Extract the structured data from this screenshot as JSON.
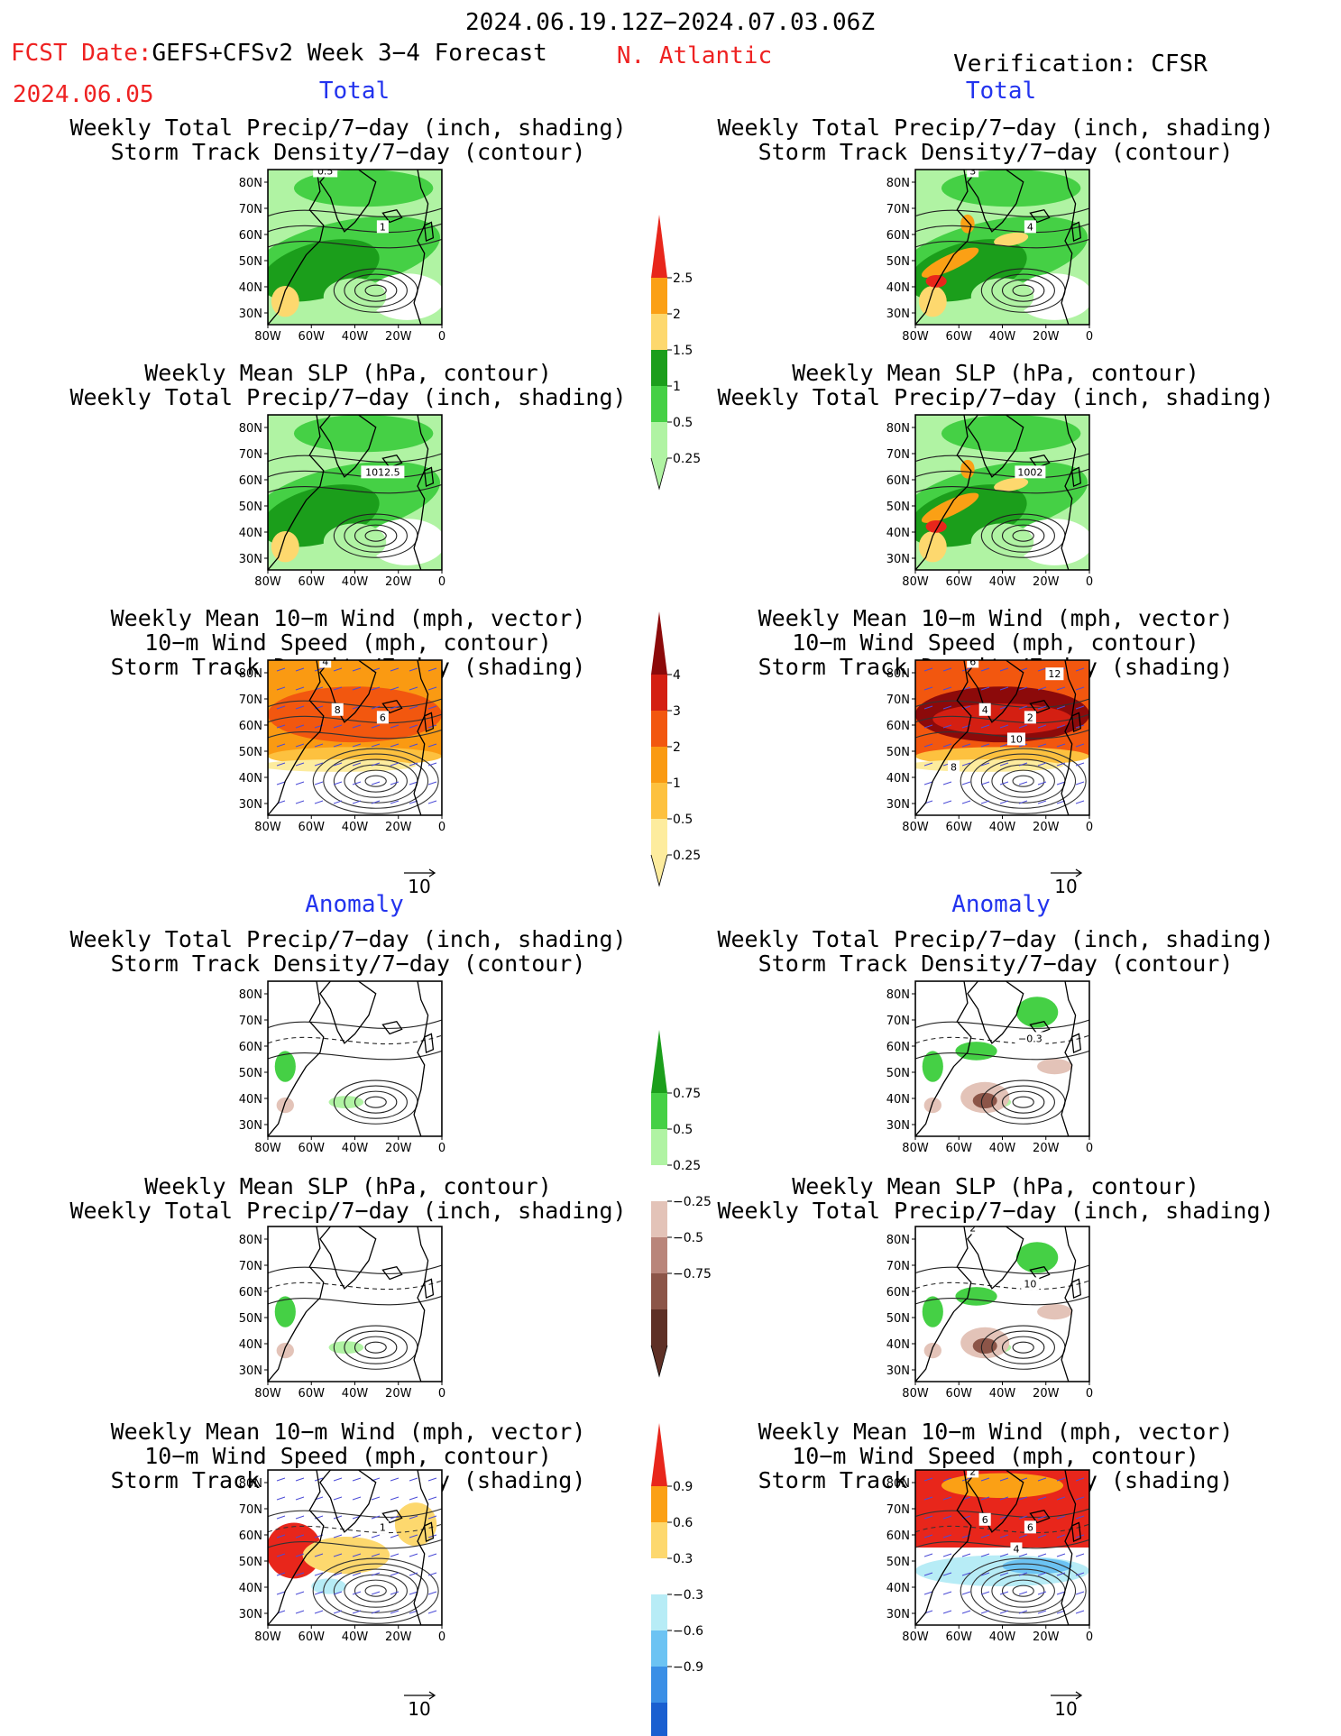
{
  "header": {
    "period": "2024.06.19.12Z−2024.07.03.06Z",
    "fcst_label": "FCST Date:",
    "fcst_date": "2024.06.05",
    "model": "GEFS+CFSv2 Week 3−4 Forecast",
    "region": "N. Atlantic",
    "verification": "Verification: CFSR",
    "total_label": "Total",
    "anomaly_label": "Anomaly"
  },
  "titles": {
    "precip_storm": [
      "Weekly Total Precip/7−day (inch, shading)",
      "Storm Track Density/7−day (contour)"
    ],
    "slp_precip": [
      "Weekly Mean SLP (hPa, contour)",
      "Weekly Total Precip/7−day (inch, shading)"
    ],
    "wind_storm": [
      "Weekly Mean 10−m Wind (mph, vector)",
      "10−m Wind Speed (mph, contour)",
      "Storm Track Density/7−day (shading)"
    ]
  },
  "axes": {
    "lat_labels": [
      "80N",
      "70N",
      "60N",
      "50N",
      "40N",
      "30N"
    ],
    "lon_labels": [
      "80W",
      "60W",
      "40W",
      "20W",
      "0"
    ]
  },
  "vector_ref": "10",
  "colorbars": [
    {
      "id": "precip-total",
      "labels": [
        "2.5",
        "2",
        "1.5",
        "1",
        "0.5",
        "0.25"
      ],
      "colors": [
        "#e8261b",
        "#fba015",
        "#fdd86e",
        "#1b9e1b",
        "#45d045",
        "#b0f3a3"
      ]
    },
    {
      "id": "storm-total",
      "labels": [
        "4",
        "3",
        "2",
        "1",
        "0.5",
        "0.25"
      ],
      "colors": [
        "#8c0a0a",
        "#d41f12",
        "#f2570f",
        "#fa9a12",
        "#fdc13f",
        "#fdec9e"
      ]
    },
    {
      "id": "precip-anom",
      "labels": [
        "0.75",
        "0.5",
        "0.25",
        "−0.25",
        "−0.5",
        "−0.75"
      ],
      "colors": [
        "#1b9e1b",
        "#45d045",
        "#b0f3a3",
        "#ffffff",
        "#e3c3b8",
        "#b9857a",
        "#8c5548",
        "#5e3026"
      ]
    },
    {
      "id": "storm-anom",
      "labels": [
        "0.9",
        "0.6",
        "0.3",
        "−0.3",
        "−0.6",
        "−0.9"
      ],
      "colors": [
        "#e8261b",
        "#fba015",
        "#fdd86e",
        "#ffffff",
        "#b7ecf6",
        "#6cc3f3",
        "#3a8fe6",
        "#1a5fd0"
      ]
    }
  ],
  "panel_labels": {
    "p1": [
      "1",
      "0.5"
    ],
    "p2": [
      "1012.5"
    ],
    "p3": [
      "6",
      "4",
      "8"
    ],
    "p5": [],
    "p6": [
      "1"
    ],
    "q1": [
      "4",
      "3"
    ],
    "q2": [
      "1002"
    ],
    "q3": [
      "2",
      "6",
      "4",
      "10",
      "8",
      "12"
    ],
    "q4": [
      "−0.3"
    ],
    "q5": [
      "10",
      "2"
    ],
    "q6": [
      "6",
      "2",
      "6",
      "4"
    ]
  }
}
